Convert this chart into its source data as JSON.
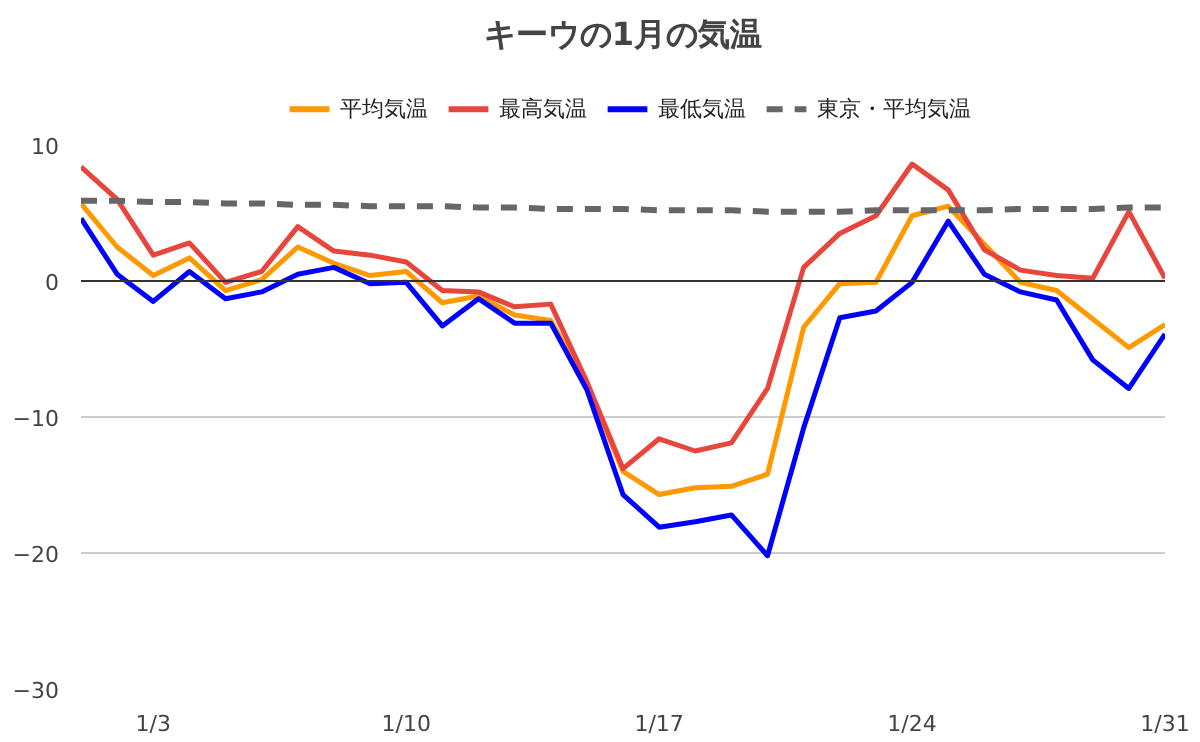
{
  "chart_data": {
    "type": "line",
    "title": "キーウの1月の気温",
    "categories": [
      null,
      null,
      "1/3",
      null,
      null,
      null,
      null,
      null,
      null,
      "1/10",
      null,
      null,
      null,
      null,
      null,
      null,
      "1/17",
      null,
      null,
      null,
      null,
      null,
      null,
      "1/24",
      null,
      null,
      null,
      null,
      null,
      null,
      "1/31"
    ],
    "series": [
      {
        "name": "平均気温",
        "color": "#ff9900",
        "values": [
          5.7,
          2.5,
          0.4,
          1.7,
          -0.7,
          0.1,
          2.5,
          1.3,
          0.4,
          0.7,
          -1.6,
          -1.1,
          -2.5,
          -2.9,
          -7.6,
          -14.0,
          -15.7,
          -15.2,
          -15.1,
          -14.2,
          -3.4,
          -0.2,
          -0.1,
          4.8,
          5.5,
          2.7,
          -0.1,
          -0.7,
          -2.8,
          -4.9,
          -3.2
        ]
      },
      {
        "name": "最高気温",
        "color": "#e8453c",
        "values": [
          8.4,
          6.0,
          1.9,
          2.8,
          -0.1,
          0.7,
          4.0,
          2.2,
          1.9,
          1.4,
          -0.7,
          -0.8,
          -1.9,
          -1.7,
          -7.4,
          -13.8,
          -11.6,
          -12.5,
          -11.9,
          -7.9,
          1.0,
          3.5,
          4.8,
          8.6,
          6.7,
          2.3,
          0.8,
          0.4,
          0.2,
          5.1,
          0.2
        ]
      },
      {
        "name": "最低気温",
        "color": "#0000ff",
        "values": [
          4.6,
          0.5,
          -1.5,
          0.7,
          -1.3,
          -0.8,
          0.5,
          1.0,
          -0.2,
          -0.1,
          -3.3,
          -1.3,
          -3.1,
          -3.1,
          -8.0,
          -15.7,
          -18.1,
          -17.7,
          -17.2,
          -20.2,
          -10.8,
          -2.7,
          -2.2,
          -0.1,
          4.4,
          0.5,
          -0.8,
          -1.4,
          -5.8,
          -7.9,
          -3.9
        ]
      },
      {
        "name": "東京・平均気温",
        "color": "#666666",
        "line_style": "dashed",
        "values": [
          5.9,
          5.9,
          5.8,
          5.8,
          5.7,
          5.7,
          5.6,
          5.6,
          5.5,
          5.5,
          5.5,
          5.4,
          5.4,
          5.3,
          5.3,
          5.3,
          5.2,
          5.2,
          5.2,
          5.1,
          5.1,
          5.1,
          5.2,
          5.2,
          5.2,
          5.2,
          5.3,
          5.3,
          5.3,
          5.4,
          5.4
        ]
      }
    ],
    "ylim": [
      -30,
      10
    ],
    "yticks": [
      -30,
      -20,
      -10,
      0,
      10
    ],
    "ref_lines": [
      {
        "axis": "y",
        "value": 0,
        "color": "#333333"
      }
    ],
    "grid": "y",
    "legend": "top",
    "marker": "none",
    "line_style": "solid"
  }
}
